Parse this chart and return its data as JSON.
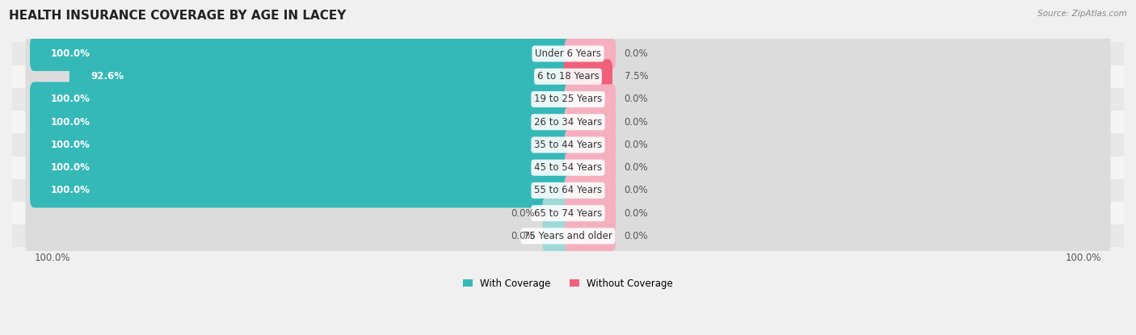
{
  "title": "HEALTH INSURANCE COVERAGE BY AGE IN LACEY",
  "source": "Source: ZipAtlas.com",
  "categories": [
    "Under 6 Years",
    "6 to 18 Years",
    "19 to 25 Years",
    "26 to 34 Years",
    "35 to 44 Years",
    "45 to 54 Years",
    "55 to 64 Years",
    "65 to 74 Years",
    "75 Years and older"
  ],
  "with_coverage": [
    100.0,
    92.6,
    100.0,
    100.0,
    100.0,
    100.0,
    100.0,
    0.0,
    0.0
  ],
  "without_coverage": [
    0.0,
    7.5,
    0.0,
    0.0,
    0.0,
    0.0,
    0.0,
    0.0,
    0.0
  ],
  "color_with": "#35b8b8",
  "color_without": "#f0607a",
  "color_with_zero": "#a0d8d8",
  "color_without_zero": "#f5b0c0",
  "title_fontsize": 11,
  "label_fontsize": 8.5,
  "pct_fontsize": 8.5,
  "tick_fontsize": 8.5,
  "source_fontsize": 7.5
}
